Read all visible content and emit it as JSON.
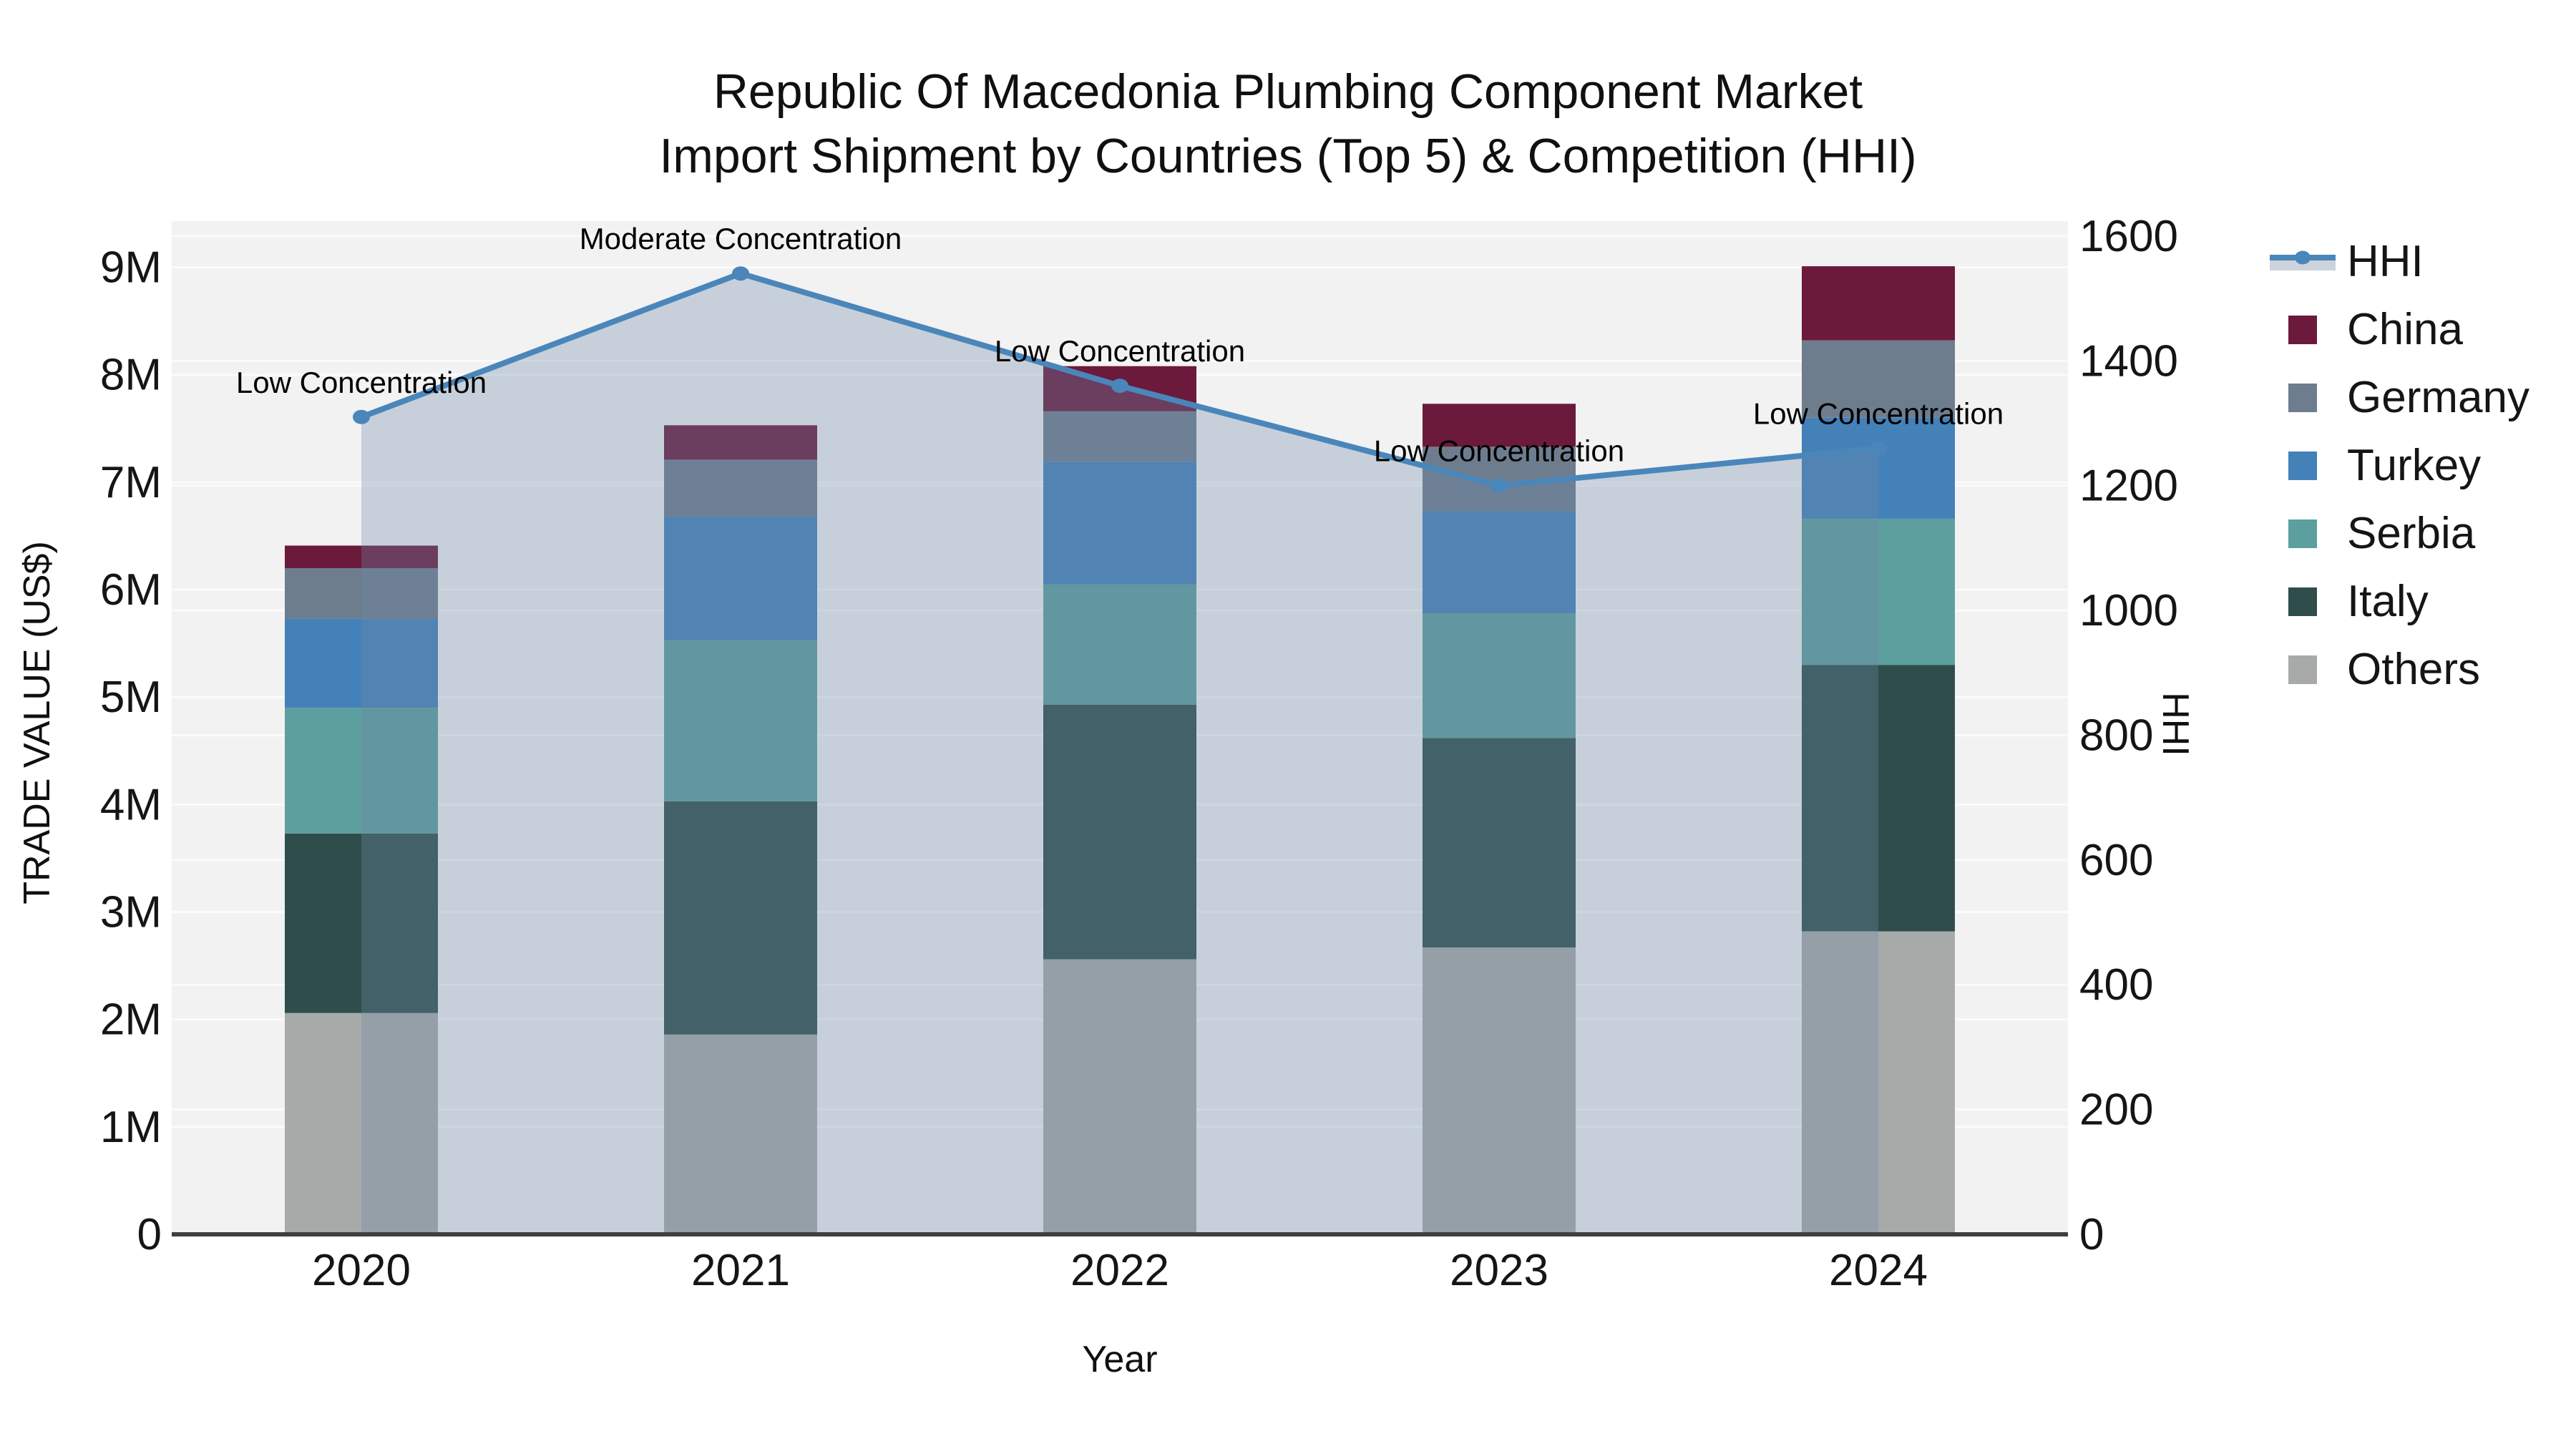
{
  "header": {
    "title_line1": "Republic Of Macedonia Plumbing Component Market",
    "title_line2": "Import Shipment by Countries (Top 5) & Competition (HHI)"
  },
  "axes": {
    "y_left_title": "TRADE VALUE (US$)",
    "y_right_title": "HHI",
    "x_title": "Year",
    "y_left_ticks": [
      "0",
      "1M",
      "2M",
      "3M",
      "4M",
      "5M",
      "6M",
      "7M",
      "8M",
      "9M"
    ],
    "y_right_ticks": [
      "0",
      "200",
      "400",
      "600",
      "800",
      "1000",
      "1200",
      "1400",
      "1600"
    ],
    "x_ticks": [
      "2020",
      "2021",
      "2022",
      "2023",
      "2024"
    ]
  },
  "legend": {
    "items": [
      {
        "label": "HHI",
        "type": "line",
        "color": "#4a86ba",
        "fill": "#ccd3dd"
      },
      {
        "label": "China",
        "type": "swatch",
        "color": "#6b1a3c"
      },
      {
        "label": "Germany",
        "type": "swatch",
        "color": "#6e7d8e"
      },
      {
        "label": "Turkey",
        "type": "swatch",
        "color": "#4481b8"
      },
      {
        "label": "Serbia",
        "type": "swatch",
        "color": "#5d9e9e"
      },
      {
        "label": "Italy",
        "type": "swatch",
        "color": "#2f4e4b"
      },
      {
        "label": "Others",
        "type": "swatch",
        "color": "#a8aaa9"
      }
    ]
  },
  "chart_data": {
    "type": "bar+line",
    "subtype": "stacked vertical bars (left axis, US$) with HHI line on right axis",
    "title": "Republic Of Macedonia Plumbing Component Market — Import Shipment by Countries (Top 5) & Competition (HHI)",
    "xlabel": "Year",
    "ylabel_left": "TRADE VALUE (US$)",
    "ylabel_right": "HHI",
    "categories": [
      "2020",
      "2021",
      "2022",
      "2023",
      "2024"
    ],
    "unit_left": "millions of US$",
    "y_left_range": [
      0,
      9.43
    ],
    "y_right_range": [
      0,
      1624
    ],
    "grid": true,
    "legend_position": "right",
    "series": [
      {
        "name": "Others",
        "color": "#a8aaa9",
        "values": [
          2.06,
          1.86,
          2.56,
          2.67,
          2.82
        ]
      },
      {
        "name": "Italy",
        "color": "#2f4e4b",
        "values": [
          1.67,
          2.17,
          2.37,
          1.95,
          2.48
        ]
      },
      {
        "name": "Serbia",
        "color": "#5d9e9e",
        "values": [
          1.17,
          1.5,
          1.12,
          1.16,
          1.36
        ]
      },
      {
        "name": "Turkey",
        "color": "#4481b8",
        "values": [
          0.83,
          1.15,
          1.14,
          0.95,
          0.94
        ]
      },
      {
        "name": "Germany",
        "color": "#6e7d8e",
        "values": [
          0.47,
          0.53,
          0.47,
          0.6,
          0.72
        ]
      },
      {
        "name": "China",
        "color": "#6b1a3c",
        "values": [
          0.21,
          0.32,
          0.42,
          0.4,
          0.69
        ]
      }
    ],
    "bar_totals": [
      6.41,
      7.53,
      8.08,
      7.73,
      9.02
    ],
    "line_series": {
      "name": "HHI",
      "axis": "right",
      "color": "#4a86ba",
      "area_fill": "rgba(110,136,168,0.32)",
      "values": [
        1310,
        1540,
        1360,
        1200,
        1260
      ]
    },
    "annotations": [
      {
        "category": "2020",
        "text": "Low Concentration"
      },
      {
        "category": "2021",
        "text": "Moderate Concentration"
      },
      {
        "category": "2022",
        "text": "Low Concentration"
      },
      {
        "category": "2023",
        "text": "Low Concentration"
      },
      {
        "category": "2024",
        "text": "Low Concentration"
      }
    ],
    "plot_bg": "#f2f2f2",
    "gridline_color": "#fbfbfb",
    "baseline_color": "#3f3f3f"
  }
}
